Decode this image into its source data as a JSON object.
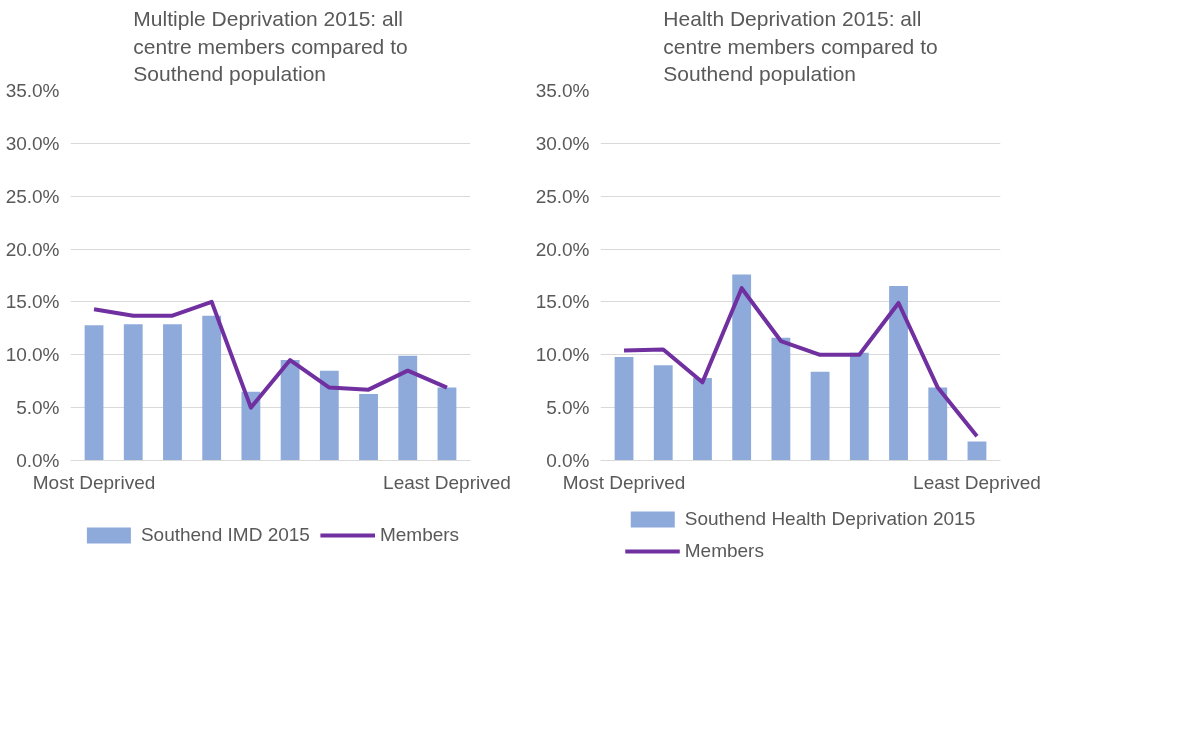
{
  "chart_data": [
    {
      "type": "bar",
      "title": "Multiple Deprivation 2015: all centre members compared to Southend population",
      "categories": [
        "Most Deprived",
        null,
        null,
        null,
        null,
        null,
        null,
        null,
        null,
        "Least Deprived"
      ],
      "series": [
        {
          "name": "Southend IMD 2015",
          "color": "#8eaadb",
          "values": [
            12.8,
            12.9,
            12.9,
            13.7,
            6.5,
            9.5,
            8.5,
            6.3,
            9.9,
            6.9
          ]
        },
        {
          "name": "Members",
          "type": "line",
          "color": "#7030a0",
          "values": [
            14.3,
            13.7,
            13.7,
            15.0,
            5.0,
            9.5,
            6.9,
            6.7,
            8.5,
            6.9
          ]
        }
      ],
      "ylim": [
        0,
        35
      ],
      "yticks": [
        {
          "value": 0,
          "label": "0.0%"
        },
        {
          "value": 5,
          "label": "5.0%"
        },
        {
          "value": 10,
          "label": "10.0%"
        },
        {
          "value": 15,
          "label": "15.0%"
        },
        {
          "value": 20,
          "label": "20.0%"
        },
        {
          "value": 25,
          "label": "25.0%"
        },
        {
          "value": 30,
          "label": "30.0%"
        },
        {
          "value": 35,
          "label": "35.0%"
        }
      ],
      "grid": "y",
      "legend": "bottom"
    },
    {
      "type": "bar",
      "title": "Health Deprivation 2015: all centre members compared to Southend population",
      "categories": [
        "Most Deprived",
        null,
        null,
        null,
        null,
        null,
        null,
        null,
        null,
        "Least Deprived"
      ],
      "series": [
        {
          "name": "Southend Health Deprivation 2015",
          "color": "#8eaadb",
          "values": [
            9.8,
            9.0,
            7.8,
            17.6,
            11.6,
            8.4,
            10.2,
            16.5,
            6.9,
            1.8
          ]
        },
        {
          "name": "Members",
          "type": "line",
          "color": "#7030a0",
          "values": [
            10.4,
            10.5,
            7.4,
            16.3,
            11.3,
            10.0,
            10.0,
            14.9,
            6.9,
            2.3
          ]
        }
      ],
      "ylim": [
        0,
        35
      ],
      "yticks": [
        {
          "value": 0,
          "label": "0.0%"
        },
        {
          "value": 5,
          "label": "5.0%"
        },
        {
          "value": 10,
          "label": "10.0%"
        },
        {
          "value": 15,
          "label": "15.0%"
        },
        {
          "value": 20,
          "label": "20.0%"
        },
        {
          "value": 25,
          "label": "25.0%"
        },
        {
          "value": 30,
          "label": "30.0%"
        },
        {
          "value": 35,
          "label": "35.0%"
        }
      ],
      "grid": "y",
      "legend": "bottom"
    }
  ]
}
